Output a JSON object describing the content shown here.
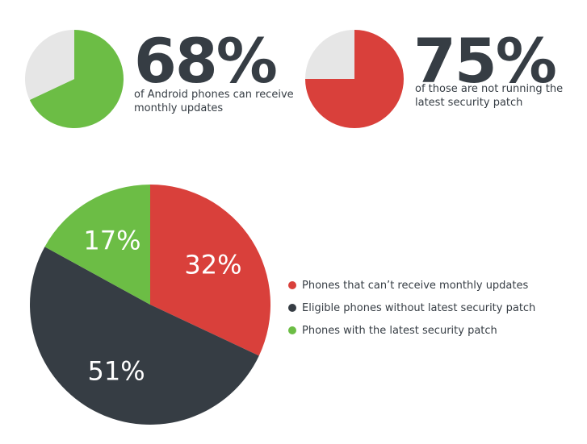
{
  "chart_data": [
    {
      "type": "pie",
      "slices": [
        {
          "label": "",
          "value": 68,
          "color": "#6cbd45"
        },
        {
          "label": "",
          "value": 32,
          "color": "#e6e6e6"
        }
      ],
      "title": "68%",
      "subtitle": "of Android phones can receive monthly updates"
    },
    {
      "type": "pie",
      "slices": [
        {
          "label": "",
          "value": 75,
          "color": "#d9403b"
        },
        {
          "label": "",
          "value": 25,
          "color": "#e6e6e6"
        }
      ],
      "title": "75%",
      "subtitle": "of those are not running the latest security patch"
    },
    {
      "type": "pie",
      "slices": [
        {
          "label": "Phones that can’t receive monthly updates",
          "value": 32,
          "display": "32%",
          "color": "#d9403b"
        },
        {
          "label": "Eligible phones without latest security patch",
          "value": 51,
          "display": "51%",
          "color": "#363d44"
        },
        {
          "label": "Phones with the latest security patch",
          "value": 17,
          "display": "17%",
          "color": "#6cbd45"
        }
      ],
      "legend_placement": "right"
    }
  ]
}
